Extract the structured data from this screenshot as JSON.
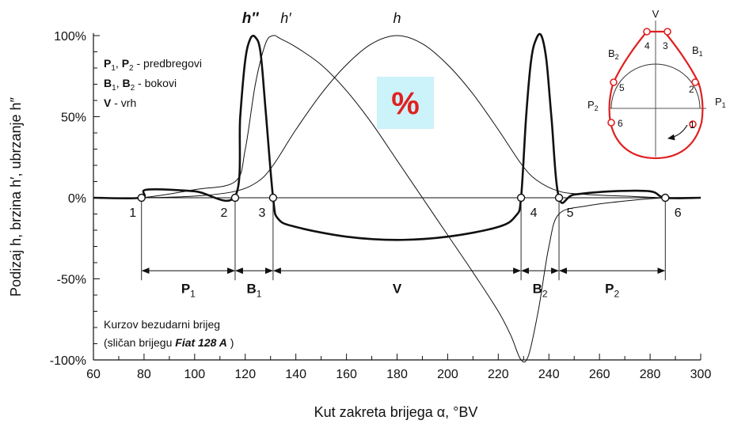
{
  "chart_data": {
    "type": "line",
    "title": "",
    "xlabel": "Kut zakreta brijega α, °BV",
    "ylabel": "Podizaj h, brzina h′, ubrzanje h″",
    "xlim": [
      60,
      300
    ],
    "ylim": [
      -100,
      100
    ],
    "x_ticks": [
      "60",
      "80",
      "100",
      "120",
      "140",
      "160",
      "180",
      "200",
      "220",
      "240",
      "260",
      "280",
      "300"
    ],
    "y_ticks": [
      "100%",
      "50%",
      "0%",
      "-50%",
      "-100%"
    ],
    "grid": false,
    "series": [
      {
        "name": "h",
        "style": "thin",
        "x": [
          60,
          79,
          100,
          116,
          125,
          131,
          140,
          150,
          160,
          170,
          180,
          190,
          200,
          210,
          220,
          229,
          235,
          244,
          255,
          270,
          286,
          300
        ],
        "y": [
          0,
          0,
          1,
          4,
          10,
          20,
          42,
          64,
          82,
          95,
          100,
          95,
          82,
          64,
          42,
          21,
          11,
          4,
          2,
          1,
          0,
          0
        ]
      },
      {
        "name": "h′",
        "style": "thin",
        "x": [
          60,
          79,
          100,
          116,
          120,
          124,
          128,
          131,
          134,
          140,
          150,
          160,
          170,
          180,
          190,
          200,
          210,
          220,
          225,
          229,
          232,
          236,
          240,
          244,
          255,
          270,
          286,
          300
        ],
        "y": [
          0,
          0,
          5,
          10,
          30,
          70,
          95,
          100,
          98,
          93,
          82,
          66,
          46,
          23,
          0,
          -23,
          -46,
          -70,
          -85,
          -100,
          -97,
          -68,
          -30,
          -10,
          -5,
          -2,
          0,
          0
        ]
      },
      {
        "name": "h″",
        "style": "thick",
        "x": [
          60,
          79,
          81,
          100,
          116,
          118,
          120,
          122,
          124,
          126,
          128,
          131,
          133,
          140,
          160,
          180,
          200,
          220,
          227,
          229,
          231,
          233,
          235,
          237,
          239,
          241,
          244,
          250,
          265,
          280,
          286,
          300
        ],
        "y": [
          0,
          0,
          5,
          4,
          1,
          50,
          85,
          98,
          99,
          90,
          55,
          0,
          -13,
          -18,
          -24,
          -26,
          -24,
          -18,
          -11,
          0,
          50,
          85,
          98,
          100,
          85,
          50,
          0,
          2,
          4,
          4,
          0,
          0
        ]
      }
    ],
    "series_labels": {
      "h": {
        "text": "h",
        "x": 180
      },
      "h1": {
        "text": "h′",
        "x": 136
      },
      "h2": {
        "text": "h″",
        "x": 122
      }
    },
    "points": [
      {
        "label": "1",
        "x": 79
      },
      {
        "label": "2",
        "x": 116
      },
      {
        "label": "3",
        "x": 131
      },
      {
        "label": "4",
        "x": 229
      },
      {
        "label": "5",
        "x": 244
      },
      {
        "label": "6",
        "x": 286
      }
    ],
    "segments": [
      {
        "label": "P",
        "sub": "1",
        "from": 79,
        "to": 116
      },
      {
        "label": "B",
        "sub": "1",
        "from": 116,
        "to": 131
      },
      {
        "label": "V",
        "sub": "",
        "from": 131,
        "to": 229
      },
      {
        "label": "B",
        "sub": "2",
        "from": 229,
        "to": 244
      },
      {
        "label": "P",
        "sub": "2",
        "from": 244,
        "to": 286
      }
    ],
    "segment_level": -45
  },
  "legend": {
    "line1": {
      "a": "P",
      "a_sub": "1",
      "sep": ", ",
      "b": "P",
      "b_sub": "2",
      "text": " - predbregovi"
    },
    "line2": {
      "a": "B",
      "a_sub": "1",
      "sep": ", ",
      "b": "B",
      "b_sub": "2",
      "text": " - bokovi"
    },
    "line3": {
      "a": "V",
      "text": " - vrh"
    }
  },
  "note": {
    "line1": "Kurzov bezudarni brijeg",
    "line2_pre": "(sličan brijegu ",
    "line2_em": "Fiat 128 A",
    "line2_post": " )"
  },
  "badge": {
    "text": "%",
    "bg": "#ccf2fa",
    "color": "#e0201e"
  },
  "cam": {
    "labels": {
      "V": "V",
      "B1": "B",
      "B1s": "1",
      "B2": "B",
      "B2s": "2",
      "P1": "P",
      "P1s": "1",
      "P2": "P",
      "P2s": "2",
      "n1": "1",
      "n2": "2",
      "n3": "3",
      "n4": "4",
      "n5": "5",
      "n6": "6"
    },
    "profile_color": "#e02020"
  }
}
